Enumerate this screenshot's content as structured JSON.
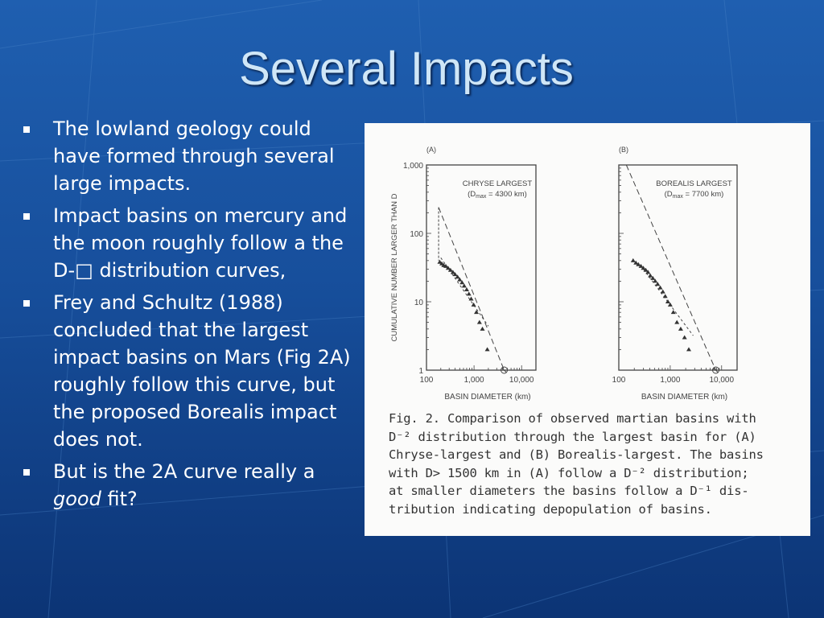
{
  "slide": {
    "title": "Several Impacts",
    "bullets": [
      {
        "text": "The lowland geology could have formed through several large impacts."
      },
      {
        "text": "Impact basins on mercury and the moon roughly follow a the D-□ distribution curves,"
      },
      {
        "text": "Frey and Schultz (1988) concluded that the largest impact basins on Mars (Fig 2A) roughly follow this curve, but the proposed Borealis impact does not."
      },
      {
        "text_before": "But is the 2A curve really a ",
        "emphasis": "good",
        "text_after": " fit?"
      }
    ]
  },
  "figure": {
    "caption_lines": [
      "Fig. 2. Comparison of observed martian basins with",
      "D⁻² distribution through the largest basin for (A)",
      "Chryse-largest and (B) Borealis-largest. The basins",
      "with D> 1500 km in (A) follow a D⁻² distribution;",
      "at smaller diameters the basins follow a D⁻¹ dis-",
      "tribution indicating depopulation of basins."
    ]
  },
  "chart_data": [
    {
      "type": "scatter",
      "panel_label": "(A)",
      "legend_title": "CHRYSE LARGEST",
      "legend_sub": "(D",
      "legend_sub_index": "max",
      "legend_value": " = 4300 km)",
      "xlabel": "BASIN DIAMETER (km)",
      "ylabel": "CUMULATIVE NUMBER LARGER THAN D",
      "xscale": "log",
      "yscale": "log",
      "xlim": [
        100,
        20000
      ],
      "ylim": [
        1,
        1000
      ],
      "xticks": [
        {
          "v": 100,
          "label": "100"
        },
        {
          "v": 1000,
          "label": "1,000"
        },
        {
          "v": 10000,
          "label": "10,000"
        }
      ],
      "yticks": [
        {
          "v": 1,
          "label": "1"
        },
        {
          "v": 10,
          "label": "10"
        },
        {
          "v": 100,
          "label": "100"
        },
        {
          "v": 1000,
          "label": "1,000"
        }
      ],
      "points": [
        [
          190,
          38
        ],
        [
          210,
          36
        ],
        [
          230,
          34
        ],
        [
          255,
          33
        ],
        [
          285,
          31
        ],
        [
          320,
          29
        ],
        [
          360,
          27
        ],
        [
          400,
          25
        ],
        [
          450,
          23
        ],
        [
          500,
          21
        ],
        [
          560,
          19
        ],
        [
          620,
          17
        ],
        [
          700,
          15
        ],
        [
          780,
          13
        ],
        [
          870,
          11
        ],
        [
          980,
          9
        ],
        [
          1120,
          7
        ],
        [
          1300,
          5
        ],
        [
          1500,
          4
        ],
        [
          1900,
          2
        ],
        [
          4300,
          1
        ]
      ],
      "ref_line_d2": [
        [
          180,
          240
        ],
        [
          4300,
          1
        ]
      ],
      "ref_line_d2_drop": [
        [
          180,
          240
        ],
        [
          180,
          40
        ]
      ],
      "ref_line_d1": [
        [
          200,
          44
        ],
        [
          2000,
          4.4
        ]
      ]
    },
    {
      "type": "scatter",
      "panel_label": "(B)",
      "legend_title": "BOREALIS LARGEST",
      "legend_sub": "(D",
      "legend_sub_index": "max",
      "legend_value": " = 7700 km)",
      "xlabel": "BASIN DIAMETER (km)",
      "ylabel": "",
      "xscale": "log",
      "yscale": "log",
      "xlim": [
        100,
        20000
      ],
      "ylim": [
        1,
        1000
      ],
      "xticks": [
        {
          "v": 100,
          "label": "100"
        },
        {
          "v": 1000,
          "label": "1,000"
        },
        {
          "v": 10000,
          "label": "10,000"
        }
      ],
      "yticks": [],
      "points": [
        [
          190,
          40
        ],
        [
          215,
          37
        ],
        [
          240,
          35
        ],
        [
          270,
          33
        ],
        [
          300,
          31
        ],
        [
          335,
          29
        ],
        [
          370,
          27
        ],
        [
          410,
          24
        ],
        [
          460,
          22
        ],
        [
          510,
          20
        ],
        [
          570,
          18
        ],
        [
          640,
          16
        ],
        [
          720,
          14
        ],
        [
          800,
          12
        ],
        [
          900,
          10
        ],
        [
          1000,
          9
        ],
        [
          1150,
          7
        ],
        [
          1350,
          5
        ],
        [
          1600,
          4
        ],
        [
          1900,
          3
        ],
        [
          2300,
          2
        ],
        [
          7700,
          1
        ]
      ],
      "ref_line_d2": [
        [
          140,
          1000
        ],
        [
          7700,
          1
        ]
      ],
      "ref_line_d1": [
        [
          300,
          30
        ],
        [
          2800,
          3.2
        ]
      ]
    }
  ]
}
